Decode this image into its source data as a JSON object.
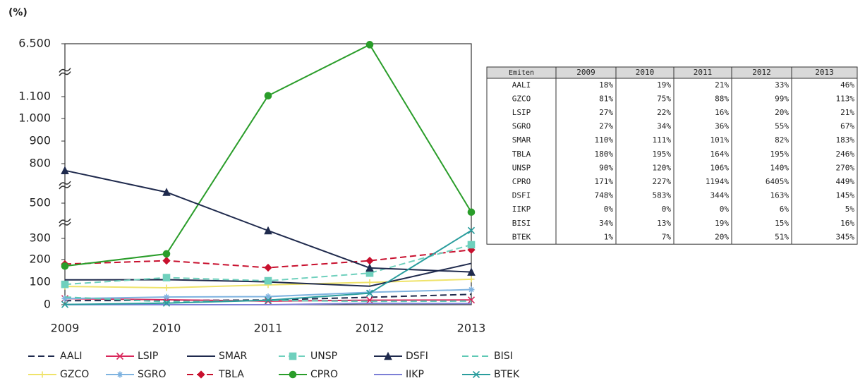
{
  "chart_data": {
    "type": "line",
    "y_label": "(%)",
    "table_header": "Emiten",
    "categories": [
      "2009",
      "2010",
      "2011",
      "2012",
      "2013"
    ],
    "ylim": [
      0,
      6500
    ],
    "yticks": [
      0,
      100,
      200,
      300,
      500,
      800,
      900,
      {
        "value": 1000,
        "label": "1.000"
      },
      {
        "value": 1100,
        "label": "1.100"
      },
      {
        "value": 6500,
        "label": "6.500"
      }
    ],
    "axis_breaks": [
      [
        300,
        500
      ],
      [
        500,
        800
      ],
      [
        1100,
        6500
      ]
    ],
    "series": [
      {
        "name": "AALI",
        "color": "#1f2a4d",
        "dash": true,
        "marker": null,
        "values": [
          18,
          19,
          21,
          33,
          46
        ],
        "value_labels": [
          "18%",
          "19%",
          "21%",
          "33%",
          "46%"
        ]
      },
      {
        "name": "GZCO",
        "color": "#efe36a",
        "dash": false,
        "marker": "plus",
        "values": [
          81,
          75,
          88,
          99,
          113
        ],
        "value_labels": [
          "81%",
          "75%",
          "88%",
          "99%",
          "113%"
        ]
      },
      {
        "name": "LSIP",
        "color": "#d9265a",
        "dash": false,
        "marker": "x",
        "values": [
          27,
          22,
          16,
          20,
          21
        ],
        "value_labels": [
          "27%",
          "22%",
          "16%",
          "20%",
          "21%"
        ]
      },
      {
        "name": "SGRO",
        "color": "#7fb3e0",
        "dash": false,
        "marker": "asterisk",
        "values": [
          27,
          34,
          36,
          55,
          67
        ],
        "value_labels": [
          "27%",
          "34%",
          "36%",
          "55%",
          "67%"
        ]
      },
      {
        "name": "SMAR",
        "color": "#1f2a4d",
        "dash": false,
        "marker": null,
        "values": [
          110,
          111,
          101,
          82,
          183
        ],
        "value_labels": [
          "110%",
          "111%",
          "101%",
          "82%",
          "183%"
        ]
      },
      {
        "name": "TBLA",
        "color": "#c8102e",
        "dash": true,
        "marker": "diamond",
        "values": [
          180,
          195,
          164,
          195,
          246
        ],
        "value_labels": [
          "180%",
          "195%",
          "164%",
          "195%",
          "246%"
        ]
      },
      {
        "name": "UNSP",
        "color": "#6fd0bd",
        "dash": true,
        "marker": "square",
        "values": [
          90,
          120,
          106,
          140,
          270
        ],
        "value_labels": [
          "90%",
          "120%",
          "106%",
          "140%",
          "270%"
        ]
      },
      {
        "name": "CPRO",
        "color": "#2a9d2a",
        "dash": false,
        "marker": "circle",
        "values": [
          171,
          227,
          1194,
          6405,
          449
        ],
        "value_labels": [
          "171%",
          "227%",
          "1194%",
          "6405%",
          "449%"
        ]
      },
      {
        "name": "DSFI",
        "color": "#1f2a4d",
        "dash": false,
        "marker": "triangle",
        "values": [
          748,
          583,
          344,
          163,
          145
        ],
        "value_labels": [
          "748%",
          "583%",
          "344%",
          "163%",
          "145%"
        ]
      },
      {
        "name": "IIKP",
        "color": "#7c7fd6",
        "dash": false,
        "marker": null,
        "values": [
          0,
          0,
          0,
          6,
          5
        ],
        "value_labels": [
          "0%",
          "0%",
          "0%",
          "6%",
          "5%"
        ]
      },
      {
        "name": "BISI",
        "color": "#5fc9b5",
        "dash": true,
        "marker": null,
        "values": [
          34,
          13,
          19,
          15,
          16
        ],
        "value_labels": [
          "34%",
          "13%",
          "19%",
          "15%",
          "16%"
        ]
      },
      {
        "name": "BTEK",
        "color": "#2a9d9d",
        "dash": false,
        "marker": "x",
        "values": [
          1,
          7,
          20,
          51,
          345
        ],
        "value_labels": [
          "1%",
          "7%",
          "20%",
          "51%",
          "345%"
        ]
      }
    ]
  }
}
